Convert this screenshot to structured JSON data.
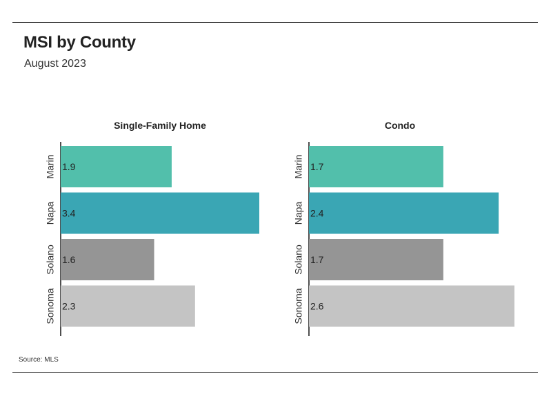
{
  "title": "MSI by County",
  "subtitle": "August 2023",
  "source": "Source: MLS",
  "colors": {
    "Marin": "#52bfab",
    "Napa": "#3aa6b4",
    "Solano": "#959595",
    "Sonoma": "#c4c4c4"
  },
  "chart_data": [
    {
      "type": "bar",
      "orientation": "horizontal",
      "title": "Single-Family Home",
      "categories": [
        "Marin",
        "Napa",
        "Solano",
        "Sonoma"
      ],
      "values": [
        1.9,
        3.4,
        1.6,
        2.3
      ],
      "labels": [
        "1.9",
        "3.4",
        "1.6",
        "2.3"
      ],
      "xlim": [
        0,
        3.4
      ]
    },
    {
      "type": "bar",
      "orientation": "horizontal",
      "title": "Condo",
      "categories": [
        "Marin",
        "Napa",
        "Solano",
        "Sonoma"
      ],
      "values": [
        1.7,
        2.4,
        1.7,
        2.6
      ],
      "labels": [
        "1.7",
        "2.4",
        "1.7",
        "2.6"
      ],
      "xlim": [
        0,
        2.6
      ]
    }
  ]
}
